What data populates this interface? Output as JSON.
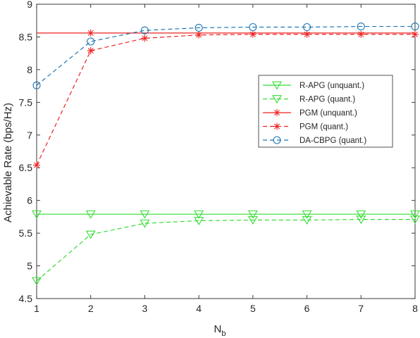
{
  "chart_data": {
    "type": "line",
    "title": "",
    "xlabel": "N",
    "xlabel_subscript": "b",
    "ylabel": "Achievable Rate (bps/Hz)",
    "xlim": [
      1,
      8
    ],
    "ylim": [
      4.5,
      9
    ],
    "xticks": [
      "1",
      "2",
      "3",
      "4",
      "5",
      "6",
      "7",
      "8"
    ],
    "yticks": [
      "4.5",
      "5",
      "5.5",
      "6",
      "6.5",
      "7",
      "7.5",
      "8",
      "8.5",
      "9"
    ],
    "grid": false,
    "legend_position": "right",
    "x": [
      1,
      2,
      3,
      4,
      5,
      6,
      7,
      8
    ],
    "series": [
      {
        "name": "R-APG (unquant.)",
        "color": "#33dd33",
        "dash": "solid",
        "marker": "triangle-down-icon",
        "values": [
          5.79,
          5.79,
          5.79,
          5.79,
          5.79,
          5.79,
          5.79,
          5.79
        ]
      },
      {
        "name": "R-APG (quant.)",
        "color": "#33dd33",
        "dash": "dashed",
        "marker": "triangle-down-icon",
        "values": [
          4.77,
          5.48,
          5.65,
          5.69,
          5.7,
          5.7,
          5.71,
          5.71
        ]
      },
      {
        "name": "PGM (unquant.)",
        "color": "#ee2222",
        "dash": "solid",
        "marker": "star-icon",
        "marker_x": [
          2
        ],
        "values": [
          8.56,
          8.56,
          8.56,
          8.56,
          8.56,
          8.56,
          8.56,
          8.56
        ]
      },
      {
        "name": "PGM (quant.)",
        "color": "#ee2222",
        "dash": "dashed",
        "marker": "star-icon",
        "values": [
          6.54,
          8.29,
          8.48,
          8.53,
          8.54,
          8.54,
          8.54,
          8.54
        ]
      },
      {
        "name": "DA-CBPG (quant.)",
        "color": "#1f77b4",
        "dash": "dashed",
        "marker": "circle-icon",
        "values": [
          7.76,
          8.43,
          8.6,
          8.64,
          8.65,
          8.65,
          8.66,
          8.66
        ]
      }
    ]
  }
}
